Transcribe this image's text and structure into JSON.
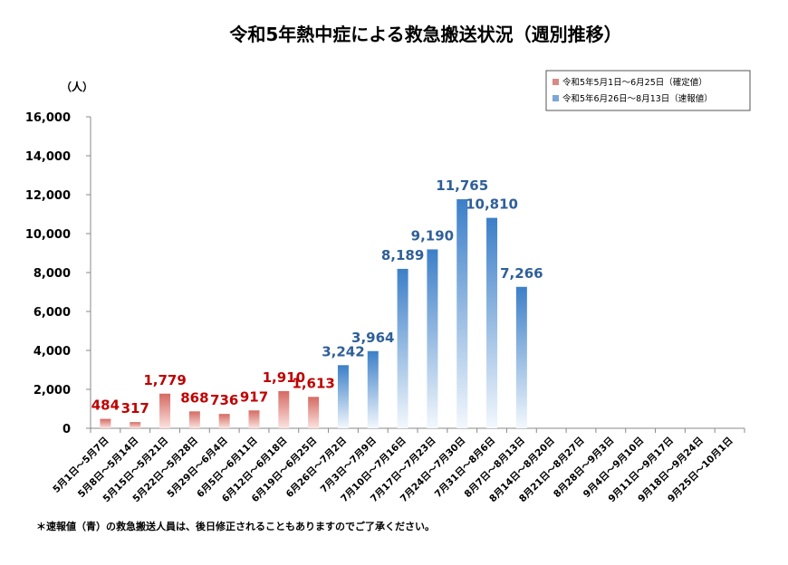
{
  "chart_data": {
    "type": "bar",
    "title": "令和5年熱中症による救急搬送状況（週別推移）",
    "ylabel": "（人）",
    "xlabel": "",
    "ylim": [
      0,
      16000
    ],
    "yticks": [
      "0",
      "2,000",
      "4,000",
      "6,000",
      "8,000",
      "10,000",
      "12,000",
      "14,000",
      "16,000"
    ],
    "grid": false,
    "legend_position": "top-right",
    "categories": [
      "5月1日～5月7日",
      "5月8日～5月14日",
      "5月15日～5月21日",
      "5月22日～5月28日",
      "5月29日～6月4日",
      "6月5日～6月11日",
      "6月12日～6月18日",
      "6月19日～6月25日",
      "6月26日～7月2日",
      "7月3日～7月9日",
      "7月10日～7月16日",
      "7月17日～7月23日",
      "7月24日～7月30日",
      "7月31日～8月6日",
      "8月7日～8月13日",
      "8月14日～8月20日",
      "8月21日～8月27日",
      "8月28日～9月3日",
      "9月4日～9月10日",
      "9月11日～9月17日",
      "9月18日～9月24日",
      "9月25日～10月1日"
    ],
    "series": [
      {
        "name": "令和5年5月1日～6月25日（確定値）",
        "color": "#d9534f",
        "label_color": "#c00000",
        "values": [
          484,
          317,
          1779,
          868,
          736,
          917,
          1910,
          1613,
          null,
          null,
          null,
          null,
          null,
          null,
          null,
          null,
          null,
          null,
          null,
          null,
          null,
          null
        ],
        "labels": [
          "484",
          "317",
          "1,779",
          "868",
          "736",
          "917",
          "1,910",
          "1,613"
        ]
      },
      {
        "name": "令和5年6月26日～8月13日（速報値）",
        "color": "#3c7fc8",
        "label_color": "#2f5f99",
        "values": [
          null,
          null,
          null,
          null,
          null,
          null,
          null,
          null,
          3242,
          3964,
          8189,
          9190,
          11765,
          10810,
          7266,
          null,
          null,
          null,
          null,
          null,
          null,
          null
        ],
        "labels": [
          "3,242",
          "3,964",
          "8,189",
          "9,190",
          "11,765",
          "10,810",
          "7,266"
        ]
      }
    ],
    "footnote": "＊速報値（青）の救急搬送人員は、後日修正されることもありますのでご了承ください。"
  }
}
